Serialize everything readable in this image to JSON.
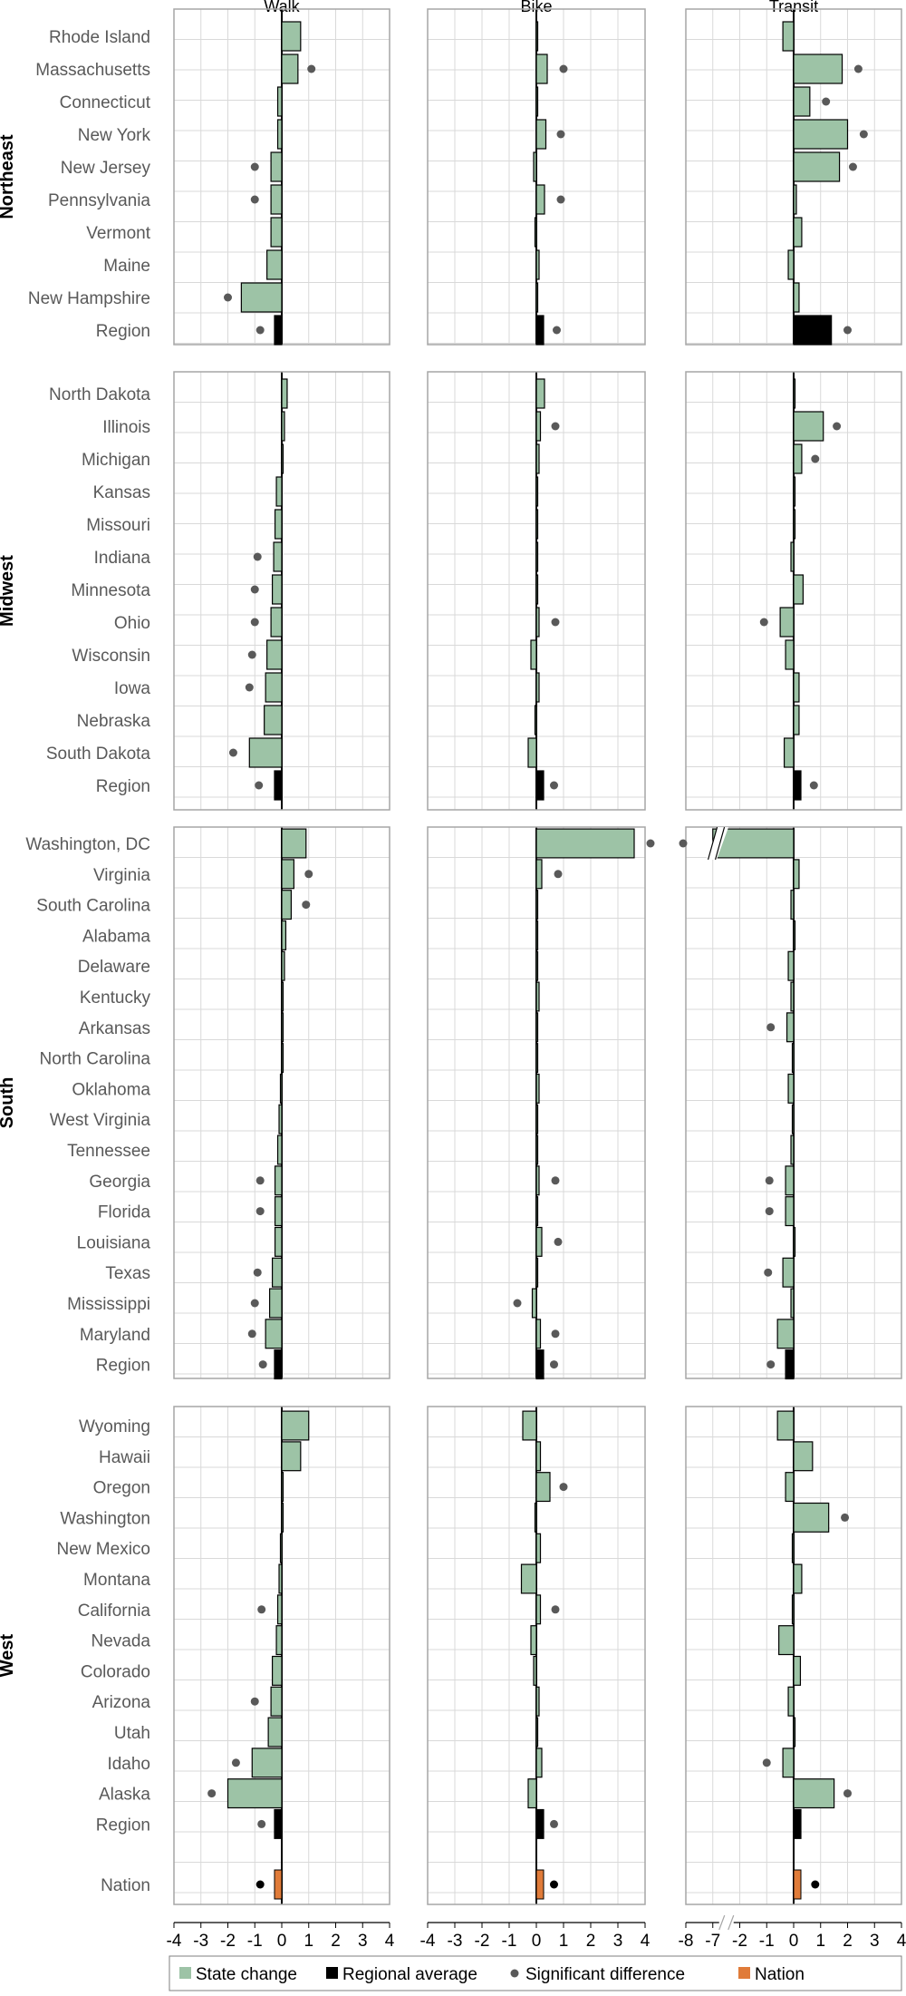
{
  "chart_data": {
    "type": "bar",
    "orientation": "horizontal",
    "panels": [
      {
        "key": "walk",
        "title": "Walk",
        "xlim": [
          -4,
          4
        ],
        "ticks": [
          "-4",
          "-3",
          "-2",
          "-1",
          "0",
          "1",
          "2",
          "3",
          "4"
        ]
      },
      {
        "key": "bike",
        "title": "Bike",
        "xlim": [
          -4,
          4
        ],
        "ticks": [
          "-4",
          "-3",
          "-2",
          "-1",
          "0",
          "1",
          "2",
          "3",
          "4"
        ]
      },
      {
        "key": "transit",
        "title": "Transit",
        "xlim": [
          -8,
          4
        ],
        "axis_break_between": [
          -7,
          -2
        ],
        "ticks": [
          "-8",
          "-7",
          "-2",
          "-1",
          "0",
          "1",
          "2",
          "3",
          "4"
        ]
      }
    ],
    "legend": [
      {
        "key": "state",
        "label": "State change",
        "color": "#9dc3a6"
      },
      {
        "key": "region",
        "label": "Regional average",
        "color": "#000000"
      },
      {
        "key": "sig",
        "label": "Significant difference",
        "color": "#595959"
      },
      {
        "key": "nation",
        "label": "Nation",
        "color": "#e07b39"
      }
    ],
    "colors": {
      "state": "#9dc3a6",
      "region": "#000000",
      "nation": "#e07b39",
      "dot": "#595959",
      "grid": "#d9d9d9",
      "border": "#a6a6a6"
    },
    "regions": [
      {
        "name": "Northeast",
        "rows": [
          {
            "label": "Rhode Island",
            "walk": 0.7,
            "bike": 0.0,
            "transit": -0.4
          },
          {
            "label": "Massachusetts",
            "walk": 0.6,
            "walk_sig": 1.1,
            "bike": 0.4,
            "bike_sig": 1.0,
            "transit": 1.8,
            "transit_sig": 2.4
          },
          {
            "label": "Connecticut",
            "walk": -0.15,
            "bike": 0.05,
            "transit": 0.6,
            "transit_sig": 1.2
          },
          {
            "label": "New York",
            "walk": -0.15,
            "bike": 0.35,
            "bike_sig": 0.9,
            "transit": 2.0,
            "transit_sig": 2.6
          },
          {
            "label": "New Jersey",
            "walk": -0.4,
            "walk_sig": -1.0,
            "bike": -0.1,
            "transit": 1.7,
            "transit_sig": 2.2
          },
          {
            "label": "Pennsylvania",
            "walk": -0.4,
            "walk_sig": -1.0,
            "bike": 0.3,
            "bike_sig": 0.9,
            "transit": 0.1
          },
          {
            "label": "Vermont",
            "walk": -0.4,
            "bike": -0.05,
            "transit": 0.3
          },
          {
            "label": "Maine",
            "walk": -0.55,
            "bike": 0.1,
            "transit": -0.2
          },
          {
            "label": "New Hampshire",
            "walk": -1.5,
            "walk_sig": -2.0,
            "bike": 0.05,
            "transit": 0.2
          },
          {
            "label": "Region",
            "region": true,
            "walk": -0.2,
            "walk_sig": -0.8,
            "bike": 0.25,
            "bike_sig": 0.75,
            "transit": 1.4,
            "transit_sig": 2.0
          }
        ]
      },
      {
        "name": "Midwest",
        "rows": [
          {
            "label": "North Dakota",
            "walk": 0.2,
            "bike": 0.3,
            "transit": 0.0
          },
          {
            "label": "Illinois",
            "walk": 0.1,
            "bike": 0.15,
            "bike_sig": 0.7,
            "transit": 1.1,
            "transit_sig": 1.6
          },
          {
            "label": "Michigan",
            "walk": 0.0,
            "bike": 0.1,
            "transit": 0.3,
            "transit_sig": 0.8
          },
          {
            "label": "Kansas",
            "walk": -0.2,
            "bike": 0.05,
            "transit": 0.0
          },
          {
            "label": "Missouri",
            "walk": -0.25,
            "bike": 0.0,
            "transit": 0.0
          },
          {
            "label": "Indiana",
            "walk": -0.3,
            "walk_sig": -0.9,
            "bike": 0.0,
            "transit": -0.1
          },
          {
            "label": "Minnesota",
            "walk": -0.35,
            "walk_sig": -1.0,
            "bike": 0.05,
            "transit": 0.35
          },
          {
            "label": "Ohio",
            "walk": -0.4,
            "walk_sig": -1.0,
            "bike": 0.1,
            "bike_sig": 0.7,
            "transit": -0.5,
            "transit_sig": -1.1
          },
          {
            "label": "Wisconsin",
            "walk": -0.55,
            "walk_sig": -1.1,
            "bike": -0.2,
            "transit": -0.3
          },
          {
            "label": "Iowa",
            "walk": -0.6,
            "walk_sig": -1.2,
            "bike": 0.1,
            "transit": 0.2
          },
          {
            "label": "Nebraska",
            "walk": -0.65,
            "bike": -0.05,
            "transit": 0.2
          },
          {
            "label": "South Dakota",
            "walk": -1.2,
            "walk_sig": -1.8,
            "bike": -0.3,
            "transit": -0.35
          },
          {
            "label": "Region",
            "region": true,
            "walk": -0.25,
            "walk_sig": -0.85,
            "bike": 0.1,
            "bike_sig": 0.65,
            "transit": 0.2,
            "transit_sig": 0.75
          }
        ]
      },
      {
        "name": "South",
        "rows": [
          {
            "label": "Washington, DC",
            "walk": 0.9,
            "bike": 3.6,
            "bike_sig": [
              4.2,
              5.4
            ],
            "transit": -7.0,
            "transit_break": true
          },
          {
            "label": "Virginia",
            "walk": 0.45,
            "walk_sig": 1.0,
            "bike": 0.2,
            "bike_sig": 0.8,
            "transit": 0.2
          },
          {
            "label": "South Carolina",
            "walk": 0.35,
            "walk_sig": 0.9,
            "bike": 0.0,
            "transit": -0.1
          },
          {
            "label": "Alabama",
            "walk": 0.15,
            "bike": 0.0,
            "transit": 0.0
          },
          {
            "label": "Delaware",
            "walk": 0.1,
            "bike": 0.05,
            "transit": -0.2
          },
          {
            "label": "Kentucky",
            "walk": 0.05,
            "bike": 0.1,
            "transit": -0.1
          },
          {
            "label": "Arkansas",
            "walk": 0.0,
            "bike": 0.0,
            "transit": -0.25,
            "transit_sig": -0.85
          },
          {
            "label": "North Carolina",
            "walk": 0.0,
            "bike": 0.05,
            "transit": -0.05
          },
          {
            "label": "Oklahoma",
            "walk": -0.05,
            "bike": 0.1,
            "transit": -0.2
          },
          {
            "label": "West Virginia",
            "walk": -0.1,
            "bike": 0.0,
            "transit": -0.05
          },
          {
            "label": "Tennessee",
            "walk": -0.15,
            "bike": 0.0,
            "transit": -0.1
          },
          {
            "label": "Georgia",
            "walk": -0.25,
            "walk_sig": -0.8,
            "bike": 0.1,
            "bike_sig": 0.7,
            "transit": -0.3,
            "transit_sig": -0.9
          },
          {
            "label": "Florida",
            "walk": -0.25,
            "walk_sig": -0.8,
            "bike": 0.05,
            "transit": -0.3,
            "transit_sig": -0.9
          },
          {
            "label": "Louisiana",
            "walk": -0.25,
            "bike": 0.2,
            "bike_sig": 0.8,
            "transit": 0.0
          },
          {
            "label": "Texas",
            "walk": -0.35,
            "walk_sig": -0.9,
            "bike": 0.05,
            "transit": -0.4,
            "transit_sig": -0.95
          },
          {
            "label": "Mississippi",
            "walk": -0.45,
            "walk_sig": -1.0,
            "bike": -0.15,
            "bike_sig": -0.7,
            "transit": -0.1
          },
          {
            "label": "Maryland",
            "walk": -0.6,
            "walk_sig": -1.1,
            "bike": 0.15,
            "bike_sig": 0.7,
            "transit": -0.6
          },
          {
            "label": "Region",
            "region": true,
            "walk": -0.15,
            "walk_sig": -0.7,
            "bike": 0.1,
            "bike_sig": 0.65,
            "transit": -0.3,
            "transit_sig": -0.85
          }
        ]
      },
      {
        "name": "West",
        "rows": [
          {
            "label": "Wyoming",
            "walk": 1.0,
            "bike": -0.5,
            "transit": -0.6
          },
          {
            "label": "Hawaii",
            "walk": 0.7,
            "bike": 0.15,
            "transit": 0.7
          },
          {
            "label": "Oregon",
            "walk": 0.0,
            "bike": 0.5,
            "bike_sig": 1.0,
            "transit": -0.3
          },
          {
            "label": "Washington",
            "walk": 0.0,
            "bike": -0.05,
            "transit": 1.3,
            "transit_sig": 1.9
          },
          {
            "label": "New Mexico",
            "walk": -0.05,
            "bike": 0.15,
            "transit": -0.05
          },
          {
            "label": "Montana",
            "walk": -0.1,
            "bike": -0.55,
            "transit": 0.3
          },
          {
            "label": "California",
            "walk": -0.15,
            "walk_sig": -0.75,
            "bike": 0.15,
            "bike_sig": 0.7,
            "transit": -0.05
          },
          {
            "label": "Nevada",
            "walk": -0.2,
            "bike": -0.2,
            "transit": -0.55
          },
          {
            "label": "Colorado",
            "walk": -0.35,
            "bike": -0.1,
            "transit": 0.25
          },
          {
            "label": "Arizona",
            "walk": -0.4,
            "walk_sig": -1.0,
            "bike": 0.1,
            "transit": -0.2
          },
          {
            "label": "Utah",
            "walk": -0.5,
            "bike": 0.05,
            "transit": 0.0
          },
          {
            "label": "Idaho",
            "walk": -1.1,
            "walk_sig": -1.7,
            "bike": 0.2,
            "transit": -0.4,
            "transit_sig": -1.0
          },
          {
            "label": "Alaska",
            "walk": -2.0,
            "walk_sig": -2.6,
            "bike": -0.3,
            "transit": 1.5,
            "transit_sig": 2.0
          },
          {
            "label": "Region",
            "region": true,
            "walk": -0.2,
            "walk_sig": -0.75,
            "bike": 0.1,
            "bike_sig": 0.65,
            "transit": 0.1
          }
        ]
      }
    ],
    "nation": {
      "label": "Nation",
      "walk": -0.2,
      "walk_sig": -0.8,
      "bike": 0.1,
      "bike_sig": 0.65,
      "transit": 0.2,
      "transit_sig": 0.8
    }
  }
}
